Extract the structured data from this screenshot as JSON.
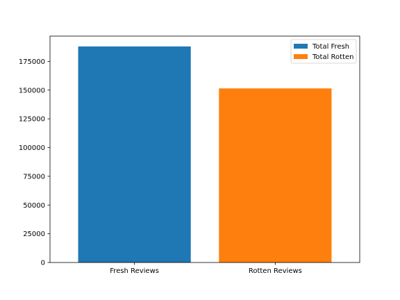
{
  "chart_data": {
    "type": "bar",
    "title": "",
    "xlabel": "",
    "ylabel": "",
    "categories": [
      "Fresh Reviews",
      "Rotten Reviews"
    ],
    "series": [
      {
        "name": "Total Fresh",
        "values": [
          188000,
          null
        ],
        "color": "#1f77b4"
      },
      {
        "name": "Total Rotten",
        "values": [
          null,
          151500
        ],
        "color": "#ff7f0e"
      }
    ],
    "ylim": [
      0,
      197000
    ],
    "yticks": [
      0,
      25000,
      50000,
      75000,
      100000,
      125000,
      150000,
      175000
    ],
    "grid": false,
    "legend_position": "top-right"
  }
}
